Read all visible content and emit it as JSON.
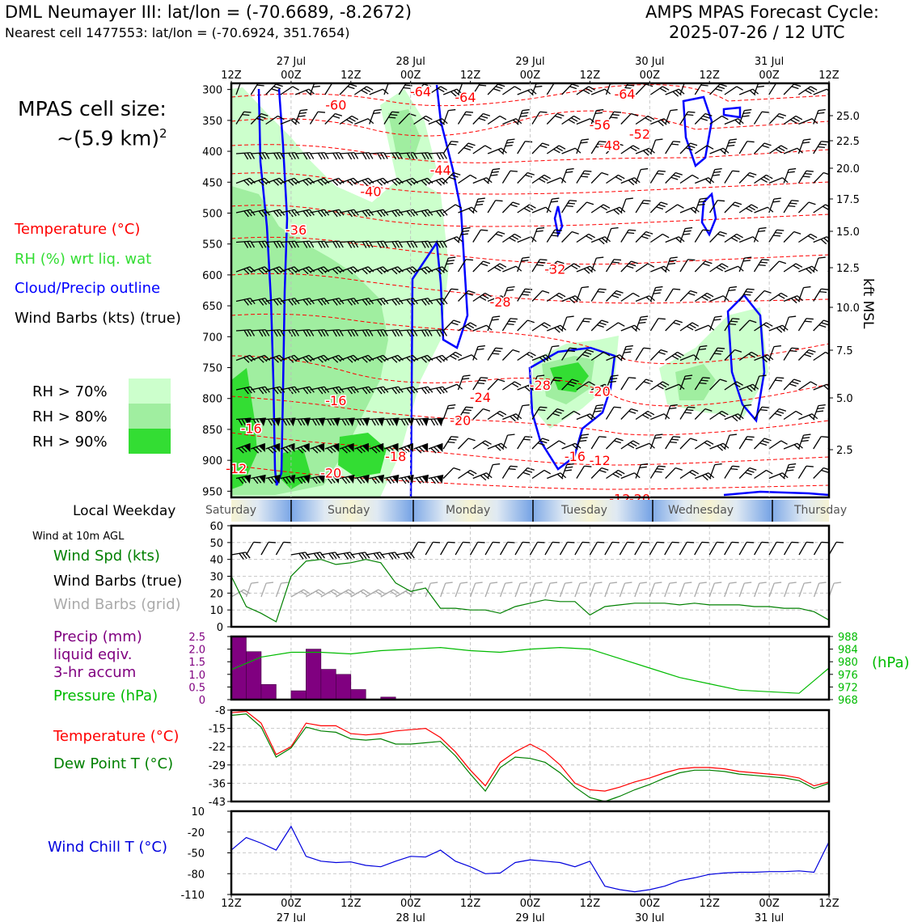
{
  "header": {
    "station": "DML Neumayer III: lat/lon = (-70.6689, -8.2672)",
    "nearest_cell": "Nearest cell 1477553: lat/lon = (-70.6924, 351.7654)",
    "cycle_line1": "AMPS MPAS Forecast Cycle:",
    "cycle_line2": "2025-07-26 / 12 UTC"
  },
  "cell_size": {
    "line1": "MPAS cell size:",
    "line2": "~(5.9 km)",
    "exponent": "2"
  },
  "legend": {
    "temperature": "Temperature (°C)",
    "rh": "RH (%) wrt liq. wat",
    "cloud": "Cloud/Precip outline",
    "wind": "Wind Barbs (kts) (true)",
    "rh70": "RH > 70%",
    "rh80": "RH > 80%",
    "rh90": "RH > 90%"
  },
  "colors": {
    "temperature": "#ff0000",
    "rh_label": "#33dd33",
    "cloud": "#0000ff",
    "rh70": "#ccffcc",
    "rh80": "#a0eea0",
    "rh90": "#33dd33",
    "precip": "#800080",
    "pressure": "#00bb00",
    "dewpoint": "#008000",
    "windchill": "#0000dd",
    "grid_barbs": "#aaaaaa"
  },
  "weekday": {
    "label": "Local Weekday",
    "days": [
      "Saturday",
      "Sunday",
      "Monday",
      "Tuesday",
      "Wednesday",
      "Thursday"
    ]
  },
  "time_axis": {
    "top_labels": [
      "12Z",
      "00Z",
      "12Z",
      "00Z",
      "12Z",
      "00Z",
      "12Z",
      "00Z",
      "12Z",
      "00Z",
      "12Z"
    ],
    "dates": [
      "27 Jul",
      "28 Jul",
      "29 Jul",
      "30 Jul",
      "31 Jul"
    ]
  },
  "wind10m": {
    "title": "Wind at 10m AGL",
    "spd_label": "Wind Spd (kts)",
    "barbs_true_label": "Wind Barbs (true)",
    "barbs_grid_label": "Wind Barbs (grid)"
  },
  "precip": {
    "label1": "Precip (mm)",
    "label2": "liquid eqiv.",
    "label3": "3-hr accum",
    "pressure_label": "Pressure (hPa)",
    "hpa_unit": "(hPa)"
  },
  "tempdew": {
    "temp_label": "Temperature (°C)",
    "dew_label": "Dew Point T (°C)"
  },
  "windchill": {
    "label": "Wind Chill T (°C)"
  },
  "pressure_axis": {
    "label": "kft MSL",
    "ticks": [
      "300",
      "350",
      "400",
      "450",
      "500",
      "550",
      "600",
      "650",
      "700",
      "750",
      "800",
      "850",
      "900",
      "950"
    ],
    "kft_ticks": [
      "25.0",
      "22.5",
      "20.0",
      "17.5",
      "15.0",
      "12.5",
      "10.0",
      "7.5",
      "5.0",
      "2.5"
    ]
  },
  "chart_data": [
    {
      "type": "heatmap",
      "panel": "time-height cross section",
      "x_hours_from_start": [
        0,
        12,
        24,
        36,
        48,
        60,
        72,
        84,
        96,
        108,
        120
      ],
      "y_pressure_hpa_range": [
        960,
        290
      ],
      "temperature_contour_labels": [
        {
          "t": 21,
          "p": 325,
          "v": "-60"
        },
        {
          "t": 38,
          "p": 303,
          "v": "-64"
        },
        {
          "t": 47,
          "p": 312,
          "v": "-64"
        },
        {
          "t": 79,
          "p": 307,
          "v": "-64"
        },
        {
          "t": 82,
          "p": 372,
          "v": "-52"
        },
        {
          "t": 76,
          "p": 390,
          "v": "-48"
        },
        {
          "t": 74,
          "p": 357,
          "v": "-56"
        },
        {
          "t": 42,
          "p": 430,
          "v": "-44"
        },
        {
          "t": 28,
          "p": 465,
          "v": "-40"
        },
        {
          "t": 13,
          "p": 527,
          "v": "-36"
        },
        {
          "t": 65,
          "p": 590,
          "v": "-32"
        },
        {
          "t": 54,
          "p": 643,
          "v": "-28"
        },
        {
          "t": 62,
          "p": 778,
          "v": "-28"
        },
        {
          "t": 50,
          "p": 798,
          "v": "-24"
        },
        {
          "t": 46,
          "p": 835,
          "v": "-20"
        },
        {
          "t": 74,
          "p": 788,
          "v": "-20"
        },
        {
          "t": 21,
          "p": 803,
          "v": "-16"
        },
        {
          "t": 4,
          "p": 848,
          "v": "-16"
        },
        {
          "t": 69,
          "p": 893,
          "v": "-16"
        },
        {
          "t": 33,
          "p": 893,
          "v": "-18"
        },
        {
          "t": 74,
          "p": 900,
          "v": "-12"
        },
        {
          "t": 1,
          "p": 913,
          "v": "-12"
        },
        {
          "t": 20,
          "p": 920,
          "v": "-20"
        },
        {
          "t": 78,
          "p": 962,
          "v": "-12"
        },
        {
          "t": 82,
          "p": 962,
          "v": "-20"
        }
      ]
    },
    {
      "type": "line",
      "panel": "Wind at 10m AGL",
      "ylabel": "",
      "ylim": [
        0,
        60
      ],
      "yticks": [
        0,
        10,
        20,
        30,
        40,
        50,
        60
      ],
      "x_hours": [
        0,
        3,
        6,
        9,
        12,
        15,
        18,
        21,
        24,
        27,
        30,
        33,
        36,
        39,
        42,
        45,
        48,
        51,
        54,
        57,
        60,
        63,
        66,
        69,
        72,
        75,
        78,
        81,
        84,
        87,
        90,
        93,
        96,
        99,
        102,
        105,
        108,
        111,
        114,
        117,
        120
      ],
      "series": [
        {
          "name": "Wind Spd (kts)",
          "values": [
            30,
            12,
            8,
            3,
            30,
            39,
            40,
            37,
            38,
            40,
            38,
            26,
            21,
            23,
            11,
            11,
            10,
            10,
            8,
            12,
            14,
            16,
            15,
            15,
            7,
            12,
            13,
            14,
            14,
            14,
            13,
            14,
            13,
            13,
            13,
            12,
            12,
            11,
            11,
            9,
            4
          ]
        }
      ]
    },
    {
      "type": "bar",
      "panel": "Precip / Pressure",
      "ylim": [
        0,
        2.5
      ],
      "yticks": [
        0,
        0.5,
        1.0,
        1.5,
        2.0,
        2.5
      ],
      "precip_x_hours": [
        0,
        3,
        6,
        9,
        12,
        15,
        18,
        21,
        24,
        27,
        30
      ],
      "precip_values_mm": [
        2.5,
        1.9,
        0.6,
        0.0,
        0.35,
        2.0,
        1.2,
        1.0,
        0.4,
        0.0,
        0.1
      ],
      "pressure_ylim": [
        968,
        988
      ],
      "pressure_yticks": [
        968,
        972,
        976,
        980,
        984,
        988
      ],
      "pressure_x_hours": [
        0,
        6,
        12,
        18,
        24,
        30,
        36,
        42,
        48,
        54,
        60,
        66,
        72,
        78,
        84,
        90,
        96,
        102,
        108,
        114,
        120
      ],
      "pressure_values": [
        977.5,
        981.5,
        983,
        983,
        982.5,
        983.5,
        984,
        984.5,
        983.5,
        983,
        984,
        984.5,
        984,
        981,
        978,
        975,
        973,
        971,
        970.5,
        970,
        978
      ]
    },
    {
      "type": "line",
      "panel": "Temperature / Dew Point",
      "ylim": [
        -43,
        -8
      ],
      "yticks": [
        -43,
        -36,
        -29,
        -22,
        -15,
        -8
      ],
      "x_hours": [
        0,
        3,
        6,
        9,
        12,
        15,
        18,
        21,
        24,
        27,
        30,
        33,
        36,
        39,
        42,
        45,
        48,
        51,
        54,
        57,
        60,
        63,
        66,
        69,
        72,
        75,
        78,
        81,
        84,
        87,
        90,
        93,
        96,
        99,
        102,
        105,
        108,
        111,
        114,
        117,
        120
      ],
      "series": [
        {
          "name": "Temperature (°C)",
          "values": [
            -9,
            -8.5,
            -13,
            -25,
            -22,
            -13,
            -14,
            -14,
            -17,
            -17.5,
            -17,
            -16,
            -15.5,
            -15,
            -18.5,
            -24,
            -31,
            -37,
            -28,
            -24,
            -21,
            -24,
            -29,
            -36,
            -38.5,
            -39,
            -37.5,
            -35.5,
            -34,
            -32,
            -30.5,
            -30,
            -30,
            -30.5,
            -31.5,
            -32,
            -32.5,
            -33,
            -34,
            -37,
            -35.5
          ]
        },
        {
          "name": "Dew Point T (°C)",
          "values": [
            -10,
            -9.5,
            -14.5,
            -26,
            -22.5,
            -14.5,
            -16,
            -16.5,
            -19,
            -19.5,
            -19,
            -21,
            -21,
            -20.5,
            -20,
            -25.5,
            -32.5,
            -39,
            -30,
            -26,
            -26.5,
            -28,
            -32,
            -37.5,
            -41.5,
            -43,
            -41,
            -38.5,
            -36.5,
            -34,
            -32,
            -31,
            -31,
            -31.5,
            -32.5,
            -33,
            -33.5,
            -34,
            -35,
            -38,
            -36
          ]
        }
      ]
    },
    {
      "type": "line",
      "panel": "Wind Chill",
      "ylim": [
        -110,
        10
      ],
      "yticks": [
        -110,
        -80,
        -50,
        -20,
        10
      ],
      "x_hours": [
        0,
        3,
        6,
        9,
        12,
        15,
        18,
        21,
        24,
        27,
        30,
        33,
        36,
        39,
        42,
        45,
        48,
        51,
        54,
        57,
        60,
        63,
        66,
        69,
        72,
        75,
        78,
        81,
        84,
        87,
        90,
        93,
        96,
        99,
        102,
        105,
        108,
        111,
        114,
        117,
        120
      ],
      "series": [
        {
          "name": "Wind Chill T (°C)",
          "values": [
            -46,
            -28,
            -36,
            -46,
            -12,
            -55,
            -62,
            -64,
            -63,
            -68,
            -70,
            -62,
            -55,
            -56,
            -46,
            -62,
            -70,
            -80,
            -79,
            -64,
            -60,
            -62,
            -64,
            -70,
            -62,
            -98,
            -103,
            -106,
            -103,
            -98,
            -90,
            -86,
            -81,
            -79,
            -78,
            -78,
            -77,
            -77,
            -76,
            -78,
            -34
          ]
        }
      ]
    }
  ]
}
